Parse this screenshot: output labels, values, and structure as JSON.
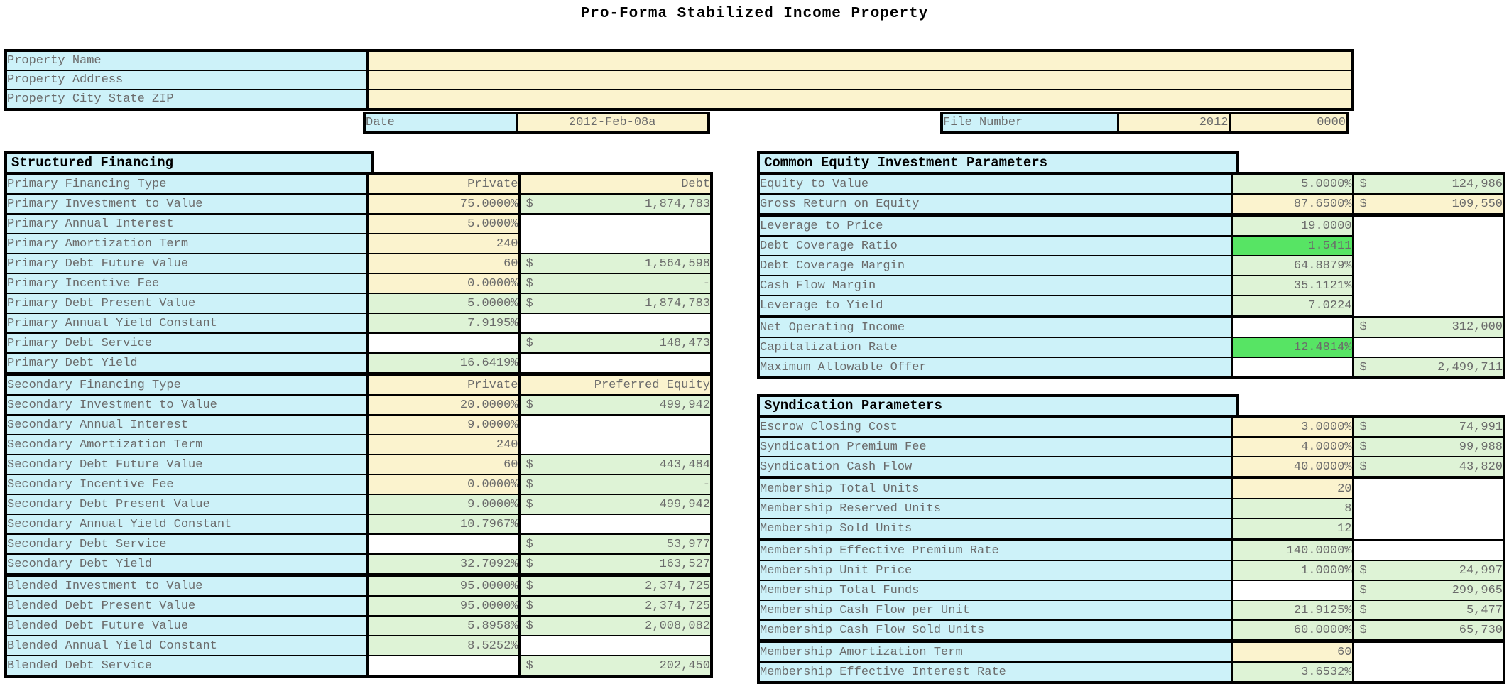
{
  "title": "Pro-Forma Stabilized Income Property",
  "colors": {
    "label_bg": "#CDF2F9",
    "input_bg": "#FBF3CE",
    "calc_bg": "#DEF3D6",
    "highlight_bg": "#57E464",
    "border": "#000000",
    "text": "#6B6B6B"
  },
  "property_header": {
    "rows": [
      {
        "label": "Property Name",
        "value": ""
      },
      {
        "label": "Property Address",
        "value": ""
      },
      {
        "label": "Property City State ZIP",
        "value": ""
      }
    ]
  },
  "date_row": {
    "label": "Date",
    "value": "2012-Feb-08a"
  },
  "file_number_row": {
    "label": "File Number",
    "year": "2012",
    "number": "0000"
  },
  "sections": {
    "structured_financing": {
      "title": "Structured Financing",
      "rows": [
        {
          "label": "Primary Financing Type",
          "v1": {
            "text": "Private",
            "type": "input"
          },
          "v2": {
            "text": "Debt",
            "type": "input"
          }
        },
        {
          "label": "Primary Investment to Value",
          "v1": {
            "text": "75.0000%",
            "type": "input"
          },
          "v2": {
            "cur": "$",
            "text": "1,874,783",
            "type": "calc"
          }
        },
        {
          "label": "Primary Annual Interest",
          "v1": {
            "text": "5.0000%",
            "type": "input"
          },
          "v2": {
            "type": "blank",
            "span": 2
          }
        },
        {
          "label": "Primary Amortization Term",
          "v1": {
            "text": "240",
            "type": "input"
          },
          "v2": {
            "type": "covered"
          }
        },
        {
          "label": "Primary Debt Future Value",
          "v1": {
            "text": "60",
            "type": "input"
          },
          "v2": {
            "cur": "$",
            "text": "1,564,598",
            "type": "calc"
          }
        },
        {
          "label": "Primary Incentive Fee",
          "v1": {
            "text": "0.0000%",
            "type": "input"
          },
          "v2": {
            "cur": "$",
            "text": "-",
            "type": "calc"
          }
        },
        {
          "label": "Primary Debt Present Value",
          "v1": {
            "text": "5.0000%",
            "type": "calc"
          },
          "v2": {
            "cur": "$",
            "text": "1,874,783",
            "type": "calc"
          }
        },
        {
          "label": "Primary Annual Yield Constant",
          "v1": {
            "text": "7.9195%",
            "type": "calc"
          },
          "v2": {
            "type": "blank"
          }
        },
        {
          "label": "Primary Debt Service",
          "v1": {
            "type": "blank"
          },
          "v2": {
            "cur": "$",
            "text": "148,473",
            "type": "calc"
          }
        },
        {
          "label": "Primary Debt Yield",
          "v1": {
            "text": "16.6419%",
            "type": "calc"
          },
          "v2": {
            "type": "blank"
          },
          "thick": true
        },
        {
          "label": "Secondary Financing Type",
          "v1": {
            "text": "Private",
            "type": "input"
          },
          "v2": {
            "text": "Preferred Equity",
            "type": "input"
          }
        },
        {
          "label": "Secondary Investment to Value",
          "v1": {
            "text": "20.0000%",
            "type": "input"
          },
          "v2": {
            "cur": "$",
            "text": "499,942",
            "type": "calc"
          }
        },
        {
          "label": "Secondary Annual Interest",
          "v1": {
            "text": "9.0000%",
            "type": "input"
          },
          "v2": {
            "type": "blank",
            "span": 2
          }
        },
        {
          "label": "Secondary Amortization Term",
          "v1": {
            "text": "240",
            "type": "input"
          },
          "v2": {
            "type": "covered"
          }
        },
        {
          "label": "Secondary Debt Future Value",
          "v1": {
            "text": "60",
            "type": "input"
          },
          "v2": {
            "cur": "$",
            "text": "443,484",
            "type": "calc"
          }
        },
        {
          "label": "Secondary Incentive Fee",
          "v1": {
            "text": "0.0000%",
            "type": "input"
          },
          "v2": {
            "cur": "$",
            "text": "-",
            "type": "calc"
          }
        },
        {
          "label": "Secondary Debt Present Value",
          "v1": {
            "text": "9.0000%",
            "type": "calc"
          },
          "v2": {
            "cur": "$",
            "text": "499,942",
            "type": "calc"
          }
        },
        {
          "label": "Secondary Annual Yield Constant",
          "v1": {
            "text": "10.7967%",
            "type": "calc"
          },
          "v2": {
            "type": "blank"
          }
        },
        {
          "label": "Secondary Debt Service",
          "v1": {
            "type": "blank"
          },
          "v2": {
            "cur": "$",
            "text": "53,977",
            "type": "calc"
          }
        },
        {
          "label": "Secondary Debt Yield",
          "v1": {
            "text": "32.7092%",
            "type": "calc"
          },
          "v2": {
            "cur": "$",
            "text": "163,527",
            "type": "calc"
          },
          "thick": true
        },
        {
          "label": "Blended Investment to Value",
          "v1": {
            "text": "95.0000%",
            "type": "calc"
          },
          "v2": {
            "cur": "$",
            "text": "2,374,725",
            "type": "calc"
          }
        },
        {
          "label": "Blended Debt Present Value",
          "v1": {
            "text": "95.0000%",
            "type": "calc"
          },
          "v2": {
            "cur": "$",
            "text": "2,374,725",
            "type": "calc"
          }
        },
        {
          "label": "Blended Debt Future Value",
          "v1": {
            "text": "5.8958%",
            "type": "calc"
          },
          "v2": {
            "cur": "$",
            "text": "2,008,082",
            "type": "calc"
          }
        },
        {
          "label": "Blended Annual Yield Constant",
          "v1": {
            "text": "8.5252%",
            "type": "calc"
          },
          "v2": {
            "type": "blank"
          }
        },
        {
          "label": "Blended Debt Service",
          "v1": {
            "type": "blank"
          },
          "v2": {
            "cur": "$",
            "text": "202,450",
            "type": "calc"
          }
        }
      ]
    },
    "common_equity": {
      "title": "Common Equity Investment Parameters",
      "rows": [
        {
          "label": "Equity to Value",
          "v1": {
            "text": "5.0000%",
            "type": "calc"
          },
          "v2": {
            "cur": "$",
            "text": "124,986",
            "type": "calc"
          }
        },
        {
          "label": "Gross Return on Equity",
          "v1": {
            "text": "87.6500%",
            "type": "input"
          },
          "v2": {
            "cur": "$",
            "text": "109,550",
            "type": "input"
          },
          "thick": true
        },
        {
          "label": "Leverage to Price",
          "v1": {
            "text": "19.0000",
            "type": "calc"
          },
          "v2": {
            "type": "blank",
            "span": 5
          }
        },
        {
          "label": "Debt Coverage Ratio",
          "v1": {
            "text": "1.5411",
            "type": "highlight"
          },
          "v2": {
            "type": "covered"
          }
        },
        {
          "label": "Debt Coverage Margin",
          "v1": {
            "text": "64.8879%",
            "type": "calc"
          },
          "v2": {
            "type": "covered"
          }
        },
        {
          "label": "Cash Flow Margin",
          "v1": {
            "text": "35.1121%",
            "type": "calc"
          },
          "v2": {
            "type": "covered"
          }
        },
        {
          "label": "Leverage to Yield",
          "v1": {
            "text": "7.0224",
            "type": "calc"
          },
          "v2": {
            "type": "covered"
          },
          "thick": true
        },
        {
          "label": "Net Operating Income",
          "v1": {
            "type": "blank"
          },
          "v2": {
            "cur": "$",
            "text": "312,000",
            "type": "calc"
          }
        },
        {
          "label": "Capitalization Rate",
          "v1": {
            "text": "12.4814%",
            "type": "highlight"
          },
          "v2": {
            "type": "blank"
          }
        },
        {
          "label": "Maximum Allowable Offer",
          "v1": {
            "type": "blank"
          },
          "v2": {
            "cur": "$",
            "text": "2,499,711",
            "type": "calc"
          }
        }
      ]
    },
    "syndication": {
      "title": "Syndication Parameters",
      "rows": [
        {
          "label": "Escrow Closing Cost",
          "v1": {
            "text": "3.0000%",
            "type": "input"
          },
          "v2": {
            "cur": "$",
            "text": "74,991",
            "type": "calc"
          }
        },
        {
          "label": "Syndication Premium Fee",
          "v1": {
            "text": "4.0000%",
            "type": "input"
          },
          "v2": {
            "cur": "$",
            "text": "99,988",
            "type": "calc"
          }
        },
        {
          "label": "Syndication Cash Flow",
          "v1": {
            "text": "40.0000%",
            "type": "input"
          },
          "v2": {
            "cur": "$",
            "text": "43,820",
            "type": "calc"
          },
          "thick": true
        },
        {
          "label": "Membership Total Units",
          "v1": {
            "text": "20",
            "type": "input"
          },
          "v2": {
            "type": "blank",
            "span": 3
          }
        },
        {
          "label": "Membership Reserved Units",
          "v1": {
            "text": "8",
            "type": "calc"
          },
          "v2": {
            "type": "covered"
          }
        },
        {
          "label": "Membership Sold Units",
          "v1": {
            "text": "12",
            "type": "calc"
          },
          "v2": {
            "type": "covered"
          },
          "thick": true
        },
        {
          "label": "Membership Effective Premium Rate",
          "v1": {
            "text": "140.0000%",
            "type": "calc"
          },
          "v2": {
            "type": "blank"
          }
        },
        {
          "label": "Membership Unit Price",
          "v1": {
            "text": "1.0000%",
            "type": "calc"
          },
          "v2": {
            "cur": "$",
            "text": "24,997",
            "type": "calc"
          }
        },
        {
          "label": "Membership Total Funds",
          "v1": {
            "type": "blank"
          },
          "v2": {
            "cur": "$",
            "text": "299,965",
            "type": "calc"
          }
        },
        {
          "label": "Membership Cash Flow per Unit",
          "v1": {
            "text": "21.9125%",
            "type": "calc"
          },
          "v2": {
            "cur": "$",
            "text": "5,477",
            "type": "calc"
          }
        },
        {
          "label": "Membership Cash Flow Sold Units",
          "v1": {
            "text": "60.0000%",
            "type": "calc"
          },
          "v2": {
            "cur": "$",
            "text": "65,730",
            "type": "calc"
          },
          "thick": true
        },
        {
          "label": "Membership Amortization Term",
          "v1": {
            "text": "60",
            "type": "input"
          },
          "v2": {
            "type": "blank",
            "span": 2
          }
        },
        {
          "label": "Membership Effective Interest Rate",
          "v1": {
            "text": "3.6532%",
            "type": "calc"
          },
          "v2": {
            "type": "covered"
          }
        }
      ]
    }
  }
}
